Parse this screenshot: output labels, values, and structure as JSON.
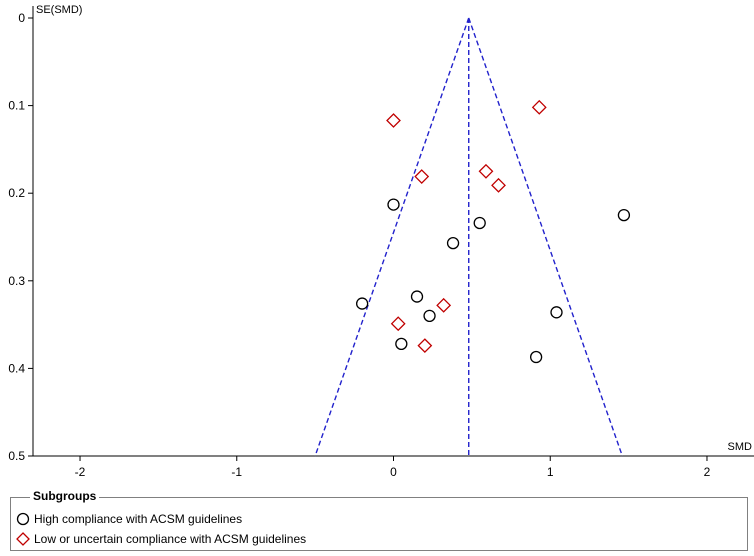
{
  "chart_data": {
    "type": "scatter",
    "chart_kind": "funnel plot",
    "xlabel": "SMD",
    "ylabel": "SE(SMD)",
    "xlim": [
      -2.3,
      2.3
    ],
    "ylim": [
      0,
      0.5
    ],
    "y_inverted": true,
    "x_ticks": [
      -2,
      -1,
      0,
      1,
      2
    ],
    "y_ticks": [
      0,
      0.1,
      0.2,
      0.3,
      0.4,
      0.5
    ],
    "pooled_estimate": 0.48,
    "funnel_lines_style": "dashed",
    "colors": {
      "funnel": "#2222cc",
      "high": "#000000",
      "low": "#c00000",
      "axis": "#000000"
    },
    "series": [
      {
        "name": "High compliance with ACSM guidelines",
        "marker": "circle",
        "points": [
          {
            "x": 0.0,
            "y": 0.213
          },
          {
            "x": 0.55,
            "y": 0.234
          },
          {
            "x": 1.47,
            "y": 0.225
          },
          {
            "x": 0.38,
            "y": 0.257
          },
          {
            "x": -0.2,
            "y": 0.326
          },
          {
            "x": 0.15,
            "y": 0.318
          },
          {
            "x": 0.23,
            "y": 0.34
          },
          {
            "x": 1.04,
            "y": 0.336
          },
          {
            "x": 0.05,
            "y": 0.372
          },
          {
            "x": 0.91,
            "y": 0.387
          }
        ]
      },
      {
        "name": "Low or uncertain compliance with ACSM guidelines",
        "marker": "diamond",
        "points": [
          {
            "x": 0.0,
            "y": 0.117
          },
          {
            "x": 0.93,
            "y": 0.102
          },
          {
            "x": 0.18,
            "y": 0.181
          },
          {
            "x": 0.59,
            "y": 0.175
          },
          {
            "x": 0.67,
            "y": 0.191
          },
          {
            "x": 0.32,
            "y": 0.328
          },
          {
            "x": 0.03,
            "y": 0.349
          },
          {
            "x": 0.2,
            "y": 0.374
          }
        ]
      }
    ]
  },
  "legend": {
    "title": "Subgroups",
    "items": [
      {
        "label": "High compliance with ACSM guidelines",
        "marker": "circle-icon"
      },
      {
        "label": "Low or uncertain compliance with ACSM guidelines",
        "marker": "diamond-icon"
      }
    ]
  }
}
